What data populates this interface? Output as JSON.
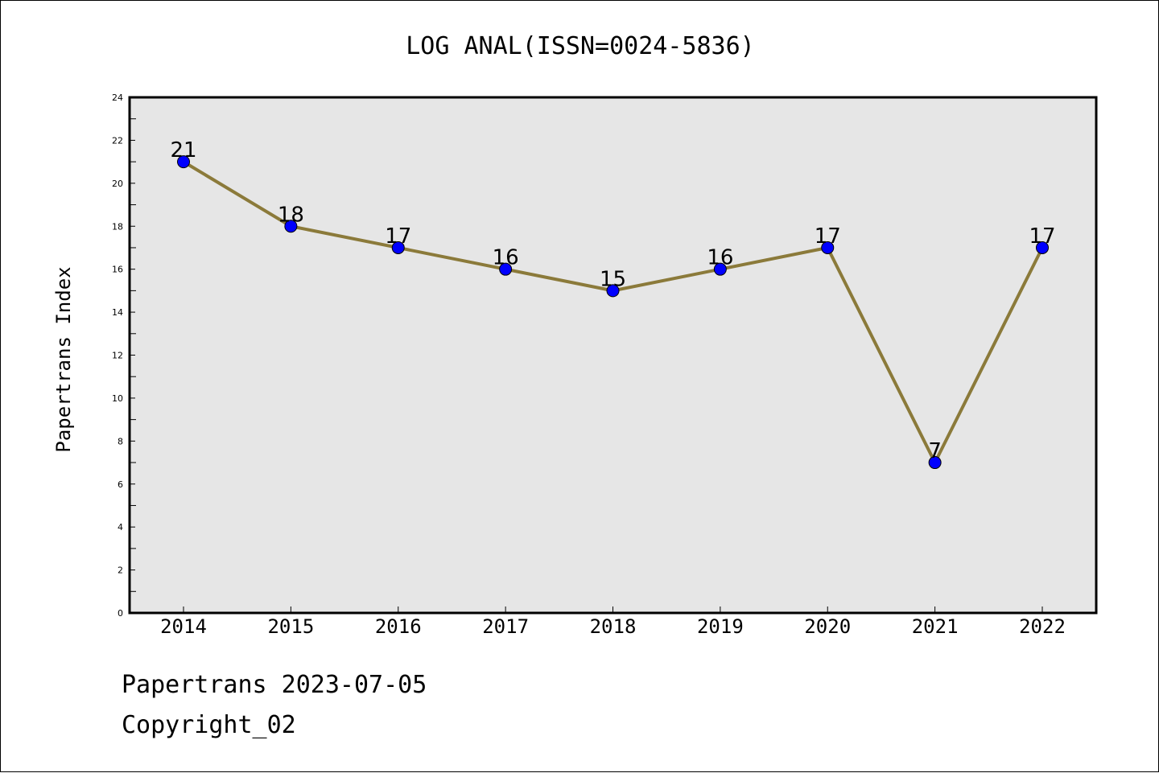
{
  "chart_data": {
    "type": "line",
    "title": "LOG ANAL(ISSN=0024-5836)",
    "ylabel": "Papertrans Index",
    "xlabel": "",
    "categories": [
      "2014",
      "2015",
      "2016",
      "2017",
      "2018",
      "2019",
      "2020",
      "2021",
      "2022"
    ],
    "series": [
      {
        "values": [
          21,
          18,
          17,
          16,
          15,
          16,
          17,
          7,
          17
        ]
      }
    ],
    "data_labels": [
      "21",
      "18",
      "17",
      "16",
      "15",
      "16",
      "17",
      "7",
      "17"
    ],
    "ylim": [
      0,
      24
    ],
    "yticks": [
      "0",
      "2",
      "4",
      "6",
      "8",
      "10",
      "12",
      "14",
      "16",
      "18",
      "20",
      "22",
      "24"
    ],
    "grid": false,
    "legend": "none",
    "colors": {
      "line": "#8b7a3a",
      "marker": "#0000ff",
      "plot_bg": "#e6e6e6"
    }
  },
  "footer": {
    "stamp": "Papertrans 2023-07-05",
    "copyright": "Copyright_02"
  }
}
